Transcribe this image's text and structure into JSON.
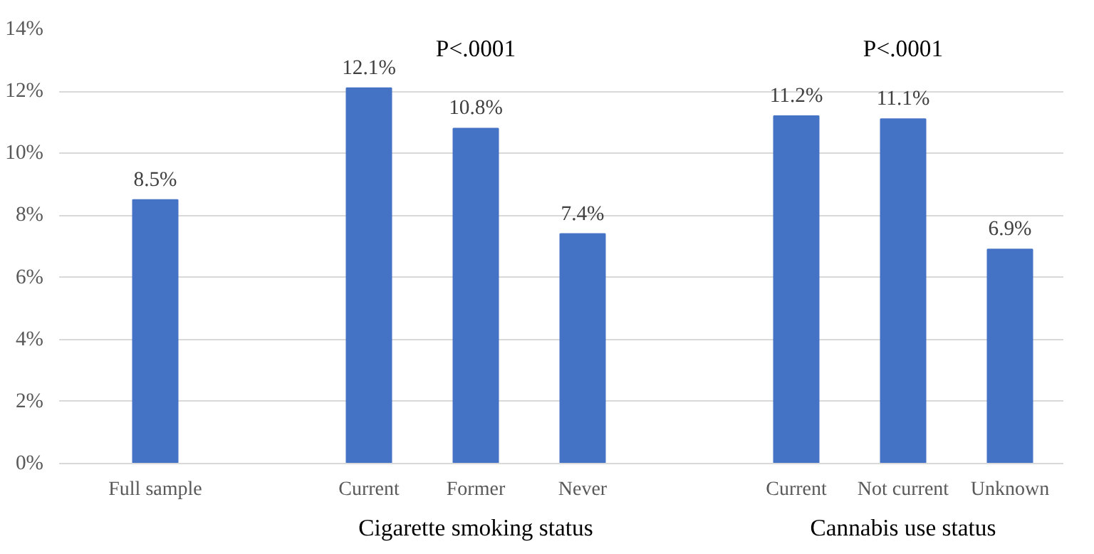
{
  "chart_data": {
    "type": "bar",
    "categories": [
      "Full sample",
      null,
      "Current",
      "Former",
      "Never",
      null,
      "Current",
      "Not current",
      "Unknown"
    ],
    "values": [
      8.5,
      null,
      12.1,
      10.8,
      7.4,
      null,
      11.2,
      11.1,
      6.9
    ],
    "value_labels": [
      "8.5%",
      null,
      "12.1%",
      "10.8%",
      "7.4%",
      null,
      "11.2%",
      "11.1%",
      "6.9%"
    ],
    "color": "#4472c4",
    "ylim": [
      0,
      14
    ],
    "yticks": [
      {
        "value": 0,
        "label": "0%"
      },
      {
        "value": 2,
        "label": "2%"
      },
      {
        "value": 4,
        "label": "4%"
      },
      {
        "value": 6,
        "label": "6%"
      },
      {
        "value": 8,
        "label": "8%"
      },
      {
        "value": 10,
        "label": "10%"
      },
      {
        "value": 12,
        "label": "12%"
      },
      {
        "value": 14,
        "label": "14%"
      }
    ],
    "grid": "y",
    "annotations": [
      "P<.0001",
      "P<.0001",
      "Cigarette smoking status",
      "Cannabis use status"
    ]
  }
}
